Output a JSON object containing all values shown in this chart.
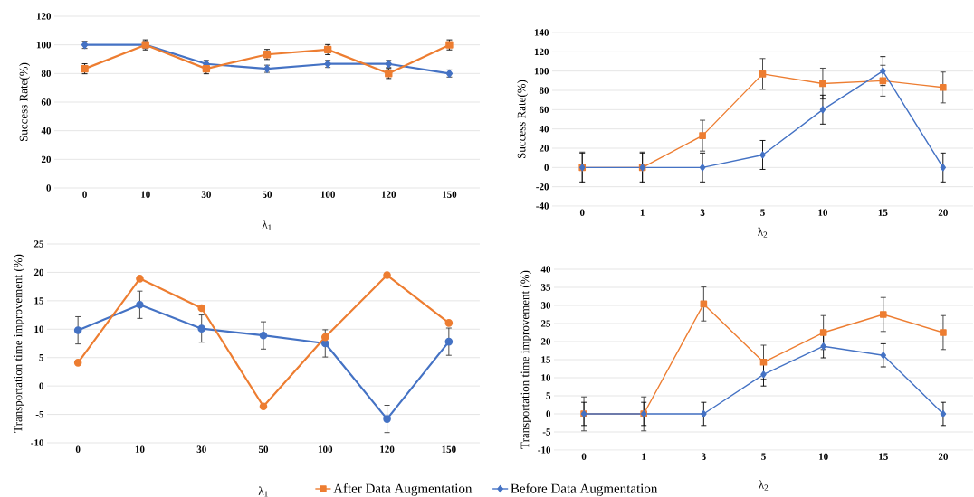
{
  "chart_data": [
    {
      "type": "line",
      "ylabel": "Success Rate(%)",
      "xlabel": "λ$_{1}$",
      "categories": [
        "0",
        "10",
        "30",
        "50",
        "100",
        "120",
        "150"
      ],
      "ylim": [
        0,
        120
      ],
      "yticks": [
        0,
        20,
        40,
        60,
        80,
        100,
        120
      ],
      "grid": "y",
      "legend": false,
      "series": [
        {
          "color": "#4472c4",
          "marker": "diamond",
          "values": [
            100,
            100,
            86.7,
            83.3,
            86.7,
            86.7,
            80
          ],
          "errors": [
            2.5,
            2.5,
            2.5,
            2.5,
            2.5,
            2.5,
            2.5
          ]
        },
        {
          "color": "#ed7d31",
          "marker": "square",
          "values": [
            83.3,
            100,
            83.3,
            93.3,
            96.7,
            80,
            100
          ],
          "errors": [
            3.5,
            3.5,
            3.5,
            3.5,
            3.5,
            3.5,
            3.5
          ]
        }
      ]
    },
    {
      "type": "line",
      "ylabel": "Success Rate(%)",
      "xlabel": "λ$_{2}$",
      "categories": [
        "0",
        "1",
        "3",
        "5",
        "10",
        "15",
        "20"
      ],
      "ylim": [
        -40,
        140
      ],
      "yticks": [
        -40,
        -20,
        0,
        20,
        40,
        60,
        80,
        100,
        120,
        140
      ],
      "grid": "y",
      "legend": false,
      "series": [
        {
          "color": "#ed7d31",
          "marker": "square",
          "values": [
            0,
            0,
            33,
            97,
            87,
            90,
            83
          ],
          "errors": [
            16,
            16,
            16,
            16,
            16,
            16,
            16
          ]
        },
        {
          "color": "#4472c4",
          "marker": "diamond",
          "values": [
            0,
            0,
            0,
            13,
            60,
            100,
            0
          ],
          "errors": [
            15,
            15,
            15,
            15,
            15,
            15,
            15
          ]
        }
      ]
    },
    {
      "type": "line",
      "ylabel": "Transportation time improvement (%)",
      "xlabel": "λ$_{1}$",
      "categories": [
        "0",
        "10",
        "30",
        "50",
        "100",
        "120",
        "150"
      ],
      "ylim": [
        -10,
        25
      ],
      "yticks": [
        -10,
        -5,
        0,
        5,
        10,
        15,
        20,
        25
      ],
      "grid": "y",
      "legend": false,
      "series": [
        {
          "color": "#4472c4",
          "marker": "circle",
          "values": [
            9.8,
            14.3,
            10.1,
            8.9,
            7.5,
            -5.8,
            7.8
          ],
          "errors": [
            2.4,
            2.4,
            2.4,
            2.4,
            2.4,
            2.4,
            2.4
          ]
        },
        {
          "color": "#ed7d31",
          "marker": "circle",
          "values": [
            4.1,
            18.9,
            13.7,
            -3.6,
            8.6,
            19.5,
            11.1
          ]
        }
      ]
    },
    {
      "type": "line",
      "ylabel": "Transportation time improvement (%)",
      "xlabel": "λ$_{2}$",
      "categories": [
        "0",
        "1",
        "3",
        "5",
        "10",
        "15",
        "20"
      ],
      "ylim": [
        -10,
        40
      ],
      "yticks": [
        -10,
        -5,
        0,
        5,
        10,
        15,
        20,
        25,
        30,
        35,
        40
      ],
      "grid": "y",
      "legend": "bottom",
      "series": [
        {
          "name": "After Data Augmentation",
          "color": "#ed7d31",
          "marker": "square",
          "values": [
            0,
            0,
            30.4,
            14.3,
            22.5,
            27.5,
            22.5
          ],
          "errors": [
            4.7,
            4.7,
            4.7,
            4.7,
            4.7,
            4.7,
            4.7
          ]
        },
        {
          "name": "Before Data Augmentation",
          "color": "#4472c4",
          "marker": "diamond",
          "values": [
            0,
            0,
            0,
            10.9,
            18.7,
            16.2,
            0
          ],
          "errors": [
            3.2,
            3.2,
            3.2,
            3.2,
            3.2,
            3.2,
            3.2
          ]
        }
      ]
    }
  ]
}
